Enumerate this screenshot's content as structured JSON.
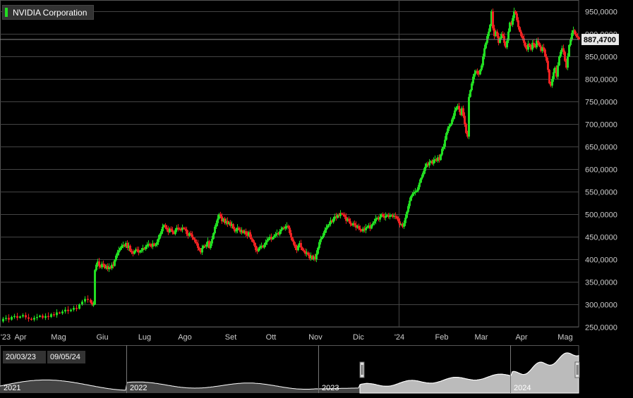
{
  "legend": {
    "label": "NVIDIA Corporation",
    "color": "#22dd22"
  },
  "price_tag": "887,4700",
  "navigator": {
    "range_start": "20/03/23",
    "range_end": "09/05/24",
    "year_labels": [
      "2021",
      "2022",
      "2023",
      "2024"
    ]
  },
  "colors": {
    "up": "#22dd22",
    "down": "#ee2222",
    "background": "#000000",
    "grid": "#444444"
  },
  "chart_data": {
    "type": "candlestick",
    "y_ticks": [
      "250,0000",
      "300,0000",
      "350,0000",
      "400,0000",
      "450,0000",
      "500,0000",
      "550,0000",
      "600,0000",
      "650,0000",
      "700,0000",
      "750,0000",
      "800,0000",
      "850,0000",
      "900,0000",
      "950,0000"
    ],
    "ylim": [
      250,
      975
    ],
    "x_ticks": [
      "'23",
      "Apr",
      "Mag",
      "Giu",
      "Lug",
      "Ago",
      "Set",
      "Ott",
      "Nov",
      "Dic",
      "'24",
      "Feb",
      "Mar",
      "Apr",
      "Mag"
    ],
    "last_price": 887.47,
    "price_path": [
      [
        0,
        262
      ],
      [
        4,
        268
      ],
      [
        8,
        270
      ],
      [
        12,
        266
      ],
      [
        16,
        272
      ],
      [
        20,
        274
      ],
      [
        24,
        270
      ],
      [
        28,
        273
      ],
      [
        32,
        276
      ],
      [
        36,
        271
      ],
      [
        40,
        268
      ],
      [
        44,
        266
      ],
      [
        48,
        270
      ],
      [
        52,
        272
      ],
      [
        56,
        275
      ],
      [
        60,
        270
      ],
      [
        64,
        274
      ],
      [
        68,
        272
      ],
      [
        72,
        278
      ],
      [
        76,
        276
      ],
      [
        80,
        282
      ],
      [
        84,
        280
      ],
      [
        88,
        284
      ],
      [
        92,
        288
      ],
      [
        96,
        285
      ],
      [
        100,
        288
      ],
      [
        104,
        292
      ],
      [
        108,
        290
      ],
      [
        112,
        300
      ],
      [
        116,
        306
      ],
      [
        120,
        312
      ],
      [
        124,
        310
      ],
      [
        128,
        304
      ],
      [
        130,
        300
      ],
      [
        132,
        300
      ],
      [
        134,
        376
      ],
      [
        136,
        388
      ],
      [
        138,
        395
      ],
      [
        140,
        385
      ],
      [
        142,
        382
      ],
      [
        144,
        390
      ],
      [
        146,
        388
      ],
      [
        148,
        380
      ],
      [
        150,
        385
      ],
      [
        152,
        378
      ],
      [
        154,
        383
      ],
      [
        156,
        380
      ],
      [
        158,
        388
      ],
      [
        160,
        385
      ],
      [
        162,
        398
      ],
      [
        164,
        408
      ],
      [
        166,
        415
      ],
      [
        168,
        420
      ],
      [
        170,
        425
      ],
      [
        172,
        430
      ],
      [
        174,
        432
      ],
      [
        176,
        428
      ],
      [
        178,
        436
      ],
      [
        180,
        425
      ],
      [
        182,
        430
      ],
      [
        184,
        418
      ],
      [
        186,
        415
      ],
      [
        188,
        412
      ],
      [
        190,
        418
      ],
      [
        192,
        422
      ],
      [
        194,
        420
      ],
      [
        196,
        415
      ],
      [
        198,
        418
      ],
      [
        200,
        420
      ],
      [
        202,
        425
      ],
      [
        204,
        422
      ],
      [
        206,
        428
      ],
      [
        208,
        432
      ],
      [
        210,
        434
      ],
      [
        212,
        430
      ],
      [
        214,
        428
      ],
      [
        216,
        435
      ],
      [
        218,
        430
      ],
      [
        220,
        432
      ],
      [
        222,
        438
      ],
      [
        224,
        446
      ],
      [
        226,
        455
      ],
      [
        228,
        462
      ],
      [
        230,
        472
      ],
      [
        232,
        476
      ],
      [
        234,
        470
      ],
      [
        236,
        466
      ],
      [
        238,
        460
      ],
      [
        240,
        468
      ],
      [
        242,
        465
      ],
      [
        244,
        460
      ],
      [
        246,
        456
      ],
      [
        248,
        465
      ],
      [
        250,
        470
      ],
      [
        252,
        468
      ],
      [
        254,
        466
      ],
      [
        256,
        465
      ],
      [
        258,
        470
      ],
      [
        260,
        468
      ],
      [
        262,
        466
      ],
      [
        264,
        456
      ],
      [
        266,
        452
      ],
      [
        268,
        458
      ],
      [
        270,
        455
      ],
      [
        272,
        448
      ],
      [
        274,
        444
      ],
      [
        276,
        438
      ],
      [
        278,
        435
      ],
      [
        280,
        425
      ],
      [
        282,
        420
      ],
      [
        284,
        415
      ],
      [
        286,
        425
      ],
      [
        288,
        430
      ],
      [
        290,
        428
      ],
      [
        292,
        432
      ],
      [
        294,
        440
      ],
      [
        296,
        425
      ],
      [
        298,
        435
      ],
      [
        300,
        445
      ],
      [
        302,
        458
      ],
      [
        304,
        472
      ],
      [
        306,
        480
      ],
      [
        308,
        490
      ],
      [
        310,
        500
      ],
      [
        312,
        495
      ],
      [
        314,
        484
      ],
      [
        316,
        490
      ],
      [
        318,
        480
      ],
      [
        320,
        485
      ],
      [
        322,
        478
      ],
      [
        324,
        482
      ],
      [
        326,
        474
      ],
      [
        328,
        478
      ],
      [
        330,
        468
      ],
      [
        332,
        462
      ],
      [
        334,
        464
      ],
      [
        336,
        470
      ],
      [
        338,
        466
      ],
      [
        340,
        460
      ],
      [
        342,
        464
      ],
      [
        344,
        458
      ],
      [
        346,
        462
      ],
      [
        348,
        455
      ],
      [
        350,
        452
      ],
      [
        352,
        460
      ],
      [
        354,
        448
      ],
      [
        356,
        444
      ],
      [
        358,
        438
      ],
      [
        360,
        430
      ],
      [
        362,
        420
      ],
      [
        364,
        418
      ],
      [
        366,
        424
      ],
      [
        368,
        428
      ],
      [
        370,
        430
      ],
      [
        372,
        426
      ],
      [
        374,
        432
      ],
      [
        376,
        438
      ],
      [
        378,
        442
      ],
      [
        380,
        446
      ],
      [
        382,
        450
      ],
      [
        384,
        444
      ],
      [
        386,
        448
      ],
      [
        388,
        452
      ],
      [
        390,
        455
      ],
      [
        392,
        458
      ],
      [
        394,
        455
      ],
      [
        396,
        462
      ],
      [
        398,
        466
      ],
      [
        400,
        470
      ],
      [
        402,
        468
      ],
      [
        404,
        472
      ],
      [
        406,
        474
      ],
      [
        408,
        470
      ],
      [
        410,
        458
      ],
      [
        412,
        448
      ],
      [
        414,
        440
      ],
      [
        416,
        432
      ],
      [
        418,
        425
      ],
      [
        420,
        420
      ],
      [
        422,
        430
      ],
      [
        424,
        436
      ],
      [
        426,
        426
      ],
      [
        428,
        420
      ],
      [
        430,
        418
      ],
      [
        432,
        412
      ],
      [
        434,
        415
      ],
      [
        436,
        410
      ],
      [
        438,
        402
      ],
      [
        440,
        408
      ],
      [
        442,
        400
      ],
      [
        444,
        406
      ],
      [
        446,
        400
      ],
      [
        448,
        412
      ],
      [
        450,
        425
      ],
      [
        452,
        438
      ],
      [
        454,
        445
      ],
      [
        456,
        450
      ],
      [
        458,
        458
      ],
      [
        460,
        465
      ],
      [
        462,
        470
      ],
      [
        464,
        475
      ],
      [
        466,
        478
      ],
      [
        468,
        486
      ],
      [
        470,
        482
      ],
      [
        472,
        490
      ],
      [
        474,
        495
      ],
      [
        476,
        492
      ],
      [
        478,
        498
      ],
      [
        480,
        496
      ],
      [
        482,
        502
      ],
      [
        484,
        500
      ],
      [
        486,
        498
      ],
      [
        488,
        494
      ],
      [
        490,
        485
      ],
      [
        492,
        490
      ],
      [
        494,
        484
      ],
      [
        496,
        478
      ],
      [
        498,
        475
      ],
      [
        500,
        480
      ],
      [
        502,
        476
      ],
      [
        504,
        470
      ],
      [
        506,
        474
      ],
      [
        508,
        468
      ],
      [
        510,
        465
      ],
      [
        512,
        462
      ],
      [
        514,
        468
      ],
      [
        516,
        464
      ],
      [
        518,
        470
      ],
      [
        520,
        472
      ],
      [
        522,
        475
      ],
      [
        524,
        468
      ],
      [
        526,
        476
      ],
      [
        528,
        480
      ],
      [
        530,
        484
      ],
      [
        532,
        490
      ],
      [
        534,
        492
      ],
      [
        536,
        488
      ],
      [
        538,
        494
      ],
      [
        540,
        500
      ],
      [
        542,
        496
      ],
      [
        544,
        492
      ],
      [
        546,
        496
      ],
      [
        548,
        498
      ],
      [
        550,
        494
      ],
      [
        552,
        496
      ],
      [
        554,
        498
      ],
      [
        556,
        494
      ],
      [
        558,
        496
      ],
      [
        560,
        495
      ],
      [
        562,
        490
      ],
      [
        564,
        484
      ],
      [
        566,
        476
      ],
      [
        568,
        478
      ],
      [
        570,
        472
      ],
      [
        572,
        480
      ],
      [
        574,
        492
      ],
      [
        576,
        505
      ],
      [
        578,
        518
      ],
      [
        580,
        530
      ],
      [
        582,
        540
      ],
      [
        584,
        545
      ],
      [
        586,
        548
      ],
      [
        588,
        550
      ],
      [
        590,
        552
      ],
      [
        592,
        560
      ],
      [
        594,
        570
      ],
      [
        596,
        580
      ],
      [
        598,
        588
      ],
      [
        600,
        596
      ],
      [
        602,
        605
      ],
      [
        604,
        612
      ],
      [
        606,
        608
      ],
      [
        608,
        615
      ],
      [
        610,
        618
      ],
      [
        612,
        612
      ],
      [
        614,
        620
      ],
      [
        616,
        622
      ],
      [
        618,
        618
      ],
      [
        620,
        626
      ],
      [
        622,
        620
      ],
      [
        624,
        632
      ],
      [
        626,
        645
      ],
      [
        628,
        650
      ],
      [
        630,
        665
      ],
      [
        632,
        680
      ],
      [
        634,
        690
      ],
      [
        636,
        695
      ],
      [
        638,
        700
      ],
      [
        640,
        710
      ],
      [
        642,
        718
      ],
      [
        644,
        730
      ],
      [
        646,
        736
      ],
      [
        648,
        740
      ],
      [
        650,
        732
      ],
      [
        652,
        720
      ],
      [
        654,
        735
      ],
      [
        656,
        718
      ],
      [
        658,
        700
      ],
      [
        660,
        680
      ],
      [
        662,
        672
      ],
      [
        664,
        760
      ],
      [
        666,
        775
      ],
      [
        668,
        790
      ],
      [
        670,
        805
      ],
      [
        672,
        812
      ],
      [
        674,
        818
      ],
      [
        676,
        812
      ],
      [
        678,
        810
      ],
      [
        680,
        820
      ],
      [
        682,
        830
      ],
      [
        684,
        850
      ],
      [
        686,
        868
      ],
      [
        688,
        880
      ],
      [
        690,
        895
      ],
      [
        692,
        905
      ],
      [
        694,
        920
      ],
      [
        696,
        950
      ],
      [
        698,
        912
      ],
      [
        700,
        895
      ],
      [
        702,
        905
      ],
      [
        704,
        895
      ],
      [
        706,
        880
      ],
      [
        708,
        890
      ],
      [
        710,
        900
      ],
      [
        712,
        895
      ],
      [
        714,
        880
      ],
      [
        716,
        870
      ],
      [
        718,
        885
      ],
      [
        720,
        905
      ],
      [
        722,
        925
      ],
      [
        724,
        920
      ],
      [
        726,
        935
      ],
      [
        728,
        950
      ],
      [
        730,
        945
      ],
      [
        732,
        930
      ],
      [
        734,
        915
      ],
      [
        736,
        905
      ],
      [
        738,
        895
      ],
      [
        740,
        890
      ],
      [
        742,
        880
      ],
      [
        744,
        870
      ],
      [
        746,
        865
      ],
      [
        748,
        878
      ],
      [
        750,
        872
      ],
      [
        752,
        865
      ],
      [
        754,
        880
      ],
      [
        756,
        875
      ],
      [
        758,
        870
      ],
      [
        760,
        885
      ],
      [
        762,
        880
      ],
      [
        764,
        872
      ],
      [
        766,
        862
      ],
      [
        768,
        870
      ],
      [
        770,
        865
      ],
      [
        772,
        850
      ],
      [
        774,
        840
      ],
      [
        776,
        820
      ],
      [
        778,
        790
      ],
      [
        780,
        785
      ],
      [
        782,
        800
      ],
      [
        784,
        815
      ],
      [
        786,
        825
      ],
      [
        788,
        805
      ],
      [
        790,
        830
      ],
      [
        792,
        850
      ],
      [
        794,
        860
      ],
      [
        796,
        868
      ],
      [
        798,
        860
      ],
      [
        800,
        840
      ],
      [
        802,
        825
      ],
      [
        804,
        850
      ],
      [
        806,
        875
      ],
      [
        808,
        888
      ],
      [
        810,
        902
      ],
      [
        812,
        908
      ],
      [
        814,
        900
      ],
      [
        816,
        895
      ],
      [
        818,
        892
      ],
      [
        820,
        887.47
      ]
    ]
  }
}
